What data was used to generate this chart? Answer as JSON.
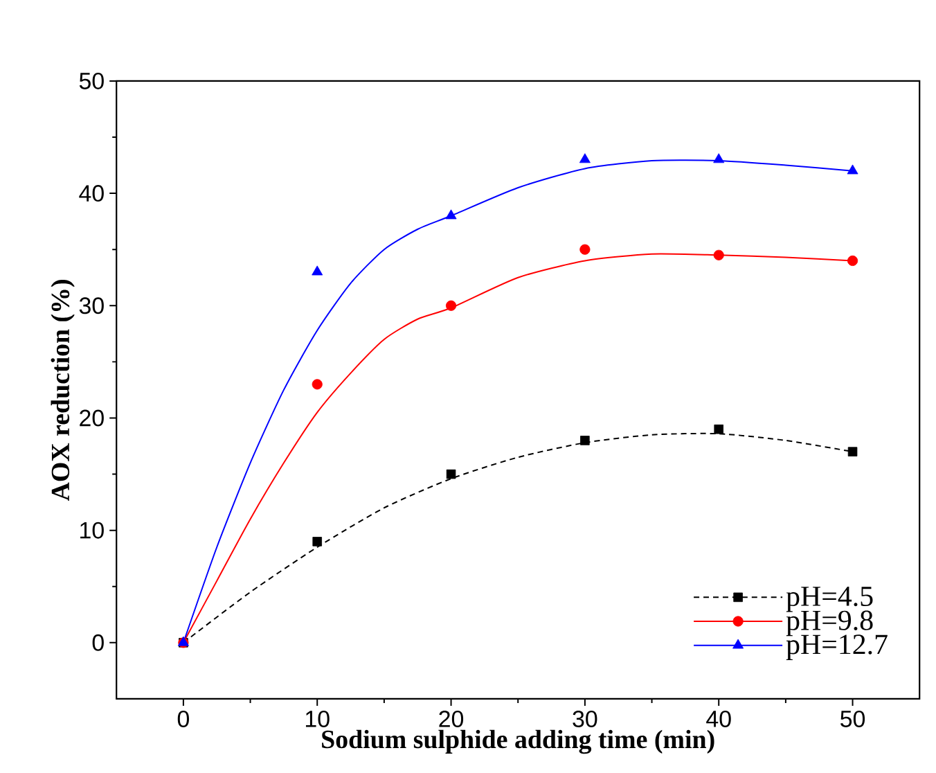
{
  "chart_data": {
    "type": "scatter",
    "xlabel": "Sodium sulphide adding time (min)",
    "ylabel": "AOX reduction (%)",
    "xlim": [
      -5,
      55
    ],
    "xticks": [
      0,
      10,
      20,
      30,
      40,
      50
    ],
    "ylim": [
      -5,
      50
    ],
    "yticks": [
      0,
      10,
      20,
      30,
      40,
      50
    ],
    "legend": "bottom right",
    "grid": false,
    "series": [
      {
        "name": "pH=4.5",
        "color": "#000000",
        "marker": "square",
        "x": [
          0,
          10,
          20,
          30,
          40,
          50
        ],
        "values": [
          0,
          9,
          15,
          18,
          19,
          17
        ]
      },
      {
        "name": "pH=9.8",
        "color": "#ff0000",
        "marker": "circle",
        "x": [
          0,
          10,
          20,
          30,
          40,
          50
        ],
        "values": [
          0,
          23,
          30,
          35,
          34.5,
          34
        ]
      },
      {
        "name": "pH=12.7",
        "color": "#0000ff",
        "marker": "triangle",
        "x": [
          0,
          10,
          20,
          30,
          40,
          50
        ],
        "values": [
          0,
          33,
          38,
          43,
          43,
          42
        ]
      },
      {
        "type": "line",
        "color": "#000000",
        "line_style": "dashed",
        "x": [
          0,
          5,
          10,
          15,
          20,
          25,
          30,
          35,
          40,
          45,
          50
        ],
        "values": [
          0,
          4.5,
          8.5,
          12,
          14.6,
          16.5,
          17.8,
          18.5,
          18.6,
          18,
          17
        ]
      },
      {
        "type": "line",
        "color": "#ff0000",
        "line_style": "solid",
        "x": [
          0,
          2.5,
          5,
          7.5,
          10,
          12.5,
          15,
          17.5,
          20,
          25,
          30,
          35,
          40,
          45,
          50
        ],
        "values": [
          0,
          5.5,
          11,
          16,
          20.5,
          24,
          27,
          28.8,
          29.8,
          32.5,
          34,
          34.6,
          34.5,
          34.3,
          34
        ]
      },
      {
        "type": "line",
        "color": "#0000ff",
        "line_style": "solid",
        "x": [
          0,
          2.5,
          5,
          7.5,
          10,
          12.5,
          15,
          17.5,
          20,
          25,
          30,
          35,
          40,
          45,
          50
        ],
        "values": [
          0,
          8.5,
          16,
          22.5,
          27.8,
          32,
          35,
          36.8,
          38,
          40.5,
          42.2,
          42.9,
          42.9,
          42.5,
          42
        ]
      }
    ]
  }
}
